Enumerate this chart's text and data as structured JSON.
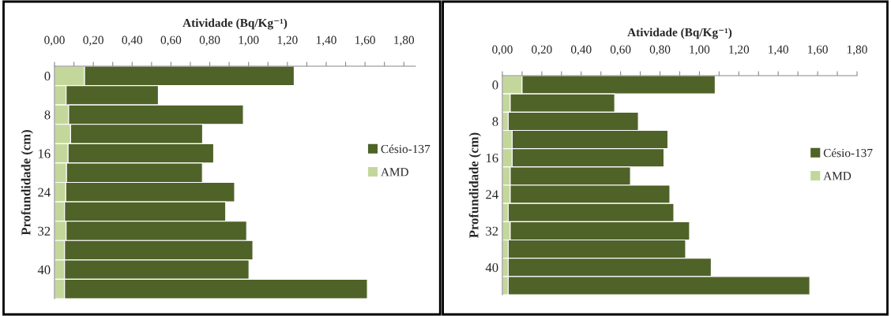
{
  "chart_data": [
    {
      "type": "bar",
      "orientation": "horizontal",
      "stacked": true,
      "xlabel": "Atividade (Bq/Kg⁻¹)",
      "ylabel": "Profundidade (cm)",
      "categories": [
        "0",
        null,
        "8",
        null,
        "16",
        null,
        "24",
        null,
        "32",
        null,
        "40",
        null
      ],
      "series": [
        {
          "name": "AMD",
          "color": "#c4d79b",
          "values": [
            0.155,
            0.06,
            0.073,
            0.083,
            0.07,
            0.062,
            0.058,
            0.052,
            0.06,
            0.052,
            0.052,
            0.052
          ]
        },
        {
          "name": "Césio-137",
          "color": "#4f6228",
          "values": [
            1.08,
            0.475,
            0.9,
            0.68,
            0.75,
            0.7,
            0.87,
            0.83,
            0.93,
            0.97,
            0.95,
            1.56
          ]
        }
      ],
      "xlim": [
        0,
        1.86
      ],
      "xticks": [
        {
          "value": 0,
          "label": "0,00"
        },
        {
          "value": 0.1,
          "label": null
        },
        {
          "value": 0.2,
          "label": "0,20"
        },
        {
          "value": 0.3,
          "label": null
        },
        {
          "value": 0.4,
          "label": "0,40"
        },
        {
          "value": 0.5,
          "label": null
        },
        {
          "value": 0.6,
          "label": "0,60"
        },
        {
          "value": 0.7,
          "label": null
        },
        {
          "value": 0.8,
          "label": "0,80"
        },
        {
          "value": 0.9,
          "label": null
        },
        {
          "value": 1.0,
          "label": "1,00"
        },
        {
          "value": 1.1,
          "label": null
        },
        {
          "value": 1.2,
          "label": "1,20"
        },
        {
          "value": 1.3,
          "label": null
        },
        {
          "value": 1.4,
          "label": "1,40"
        },
        {
          "value": 1.5,
          "label": null
        },
        {
          "value": 1.6,
          "label": "1,60"
        },
        {
          "value": 1.7,
          "label": null
        },
        {
          "value": 1.8,
          "label": "1,80"
        }
      ],
      "legend": "right",
      "grid": false
    },
    {
      "type": "bar",
      "orientation": "horizontal",
      "stacked": true,
      "xlabel": "Atividade (Bq/Kg⁻¹)",
      "ylabel": "Profundidade (cm)",
      "categories": [
        "0",
        null,
        "8",
        null,
        "16",
        null,
        "24",
        null,
        "32",
        null,
        "40",
        null
      ],
      "series": [
        {
          "name": "AMD",
          "color": "#c4d79b",
          "values": [
            0.1,
            0.04,
            0.03,
            0.05,
            0.05,
            0.04,
            0.04,
            0.03,
            0.04,
            0.03,
            0.03,
            0.03
          ]
        },
        {
          "name": "Césio-137",
          "color": "#4f6228",
          "values": [
            0.98,
            0.53,
            0.66,
            0.79,
            0.77,
            0.61,
            0.81,
            0.84,
            0.91,
            0.9,
            1.03,
            1.53
          ]
        }
      ],
      "xlim": [
        0,
        1.8
      ],
      "xticks": [
        {
          "value": 0,
          "label": "0,00"
        },
        {
          "value": 0.1,
          "label": null
        },
        {
          "value": 0.2,
          "label": "0,20"
        },
        {
          "value": 0.3,
          "label": null
        },
        {
          "value": 0.4,
          "label": "0,40"
        },
        {
          "value": 0.5,
          "label": null
        },
        {
          "value": 0.6,
          "label": "0,60"
        },
        {
          "value": 0.7,
          "label": null
        },
        {
          "value": 0.8,
          "label": "0,80"
        },
        {
          "value": 0.9,
          "label": null
        },
        {
          "value": 1.0,
          "label": "1,00"
        },
        {
          "value": 1.1,
          "label": null
        },
        {
          "value": 1.2,
          "label": "1,20"
        },
        {
          "value": 1.3,
          "label": null
        },
        {
          "value": 1.4,
          "label": "1,40"
        },
        {
          "value": 1.5,
          "label": null
        },
        {
          "value": 1.6,
          "label": "1,60"
        },
        {
          "value": 1.7,
          "label": null
        },
        {
          "value": 1.8,
          "label": "1,80"
        }
      ],
      "legend": "right",
      "grid": false
    }
  ]
}
